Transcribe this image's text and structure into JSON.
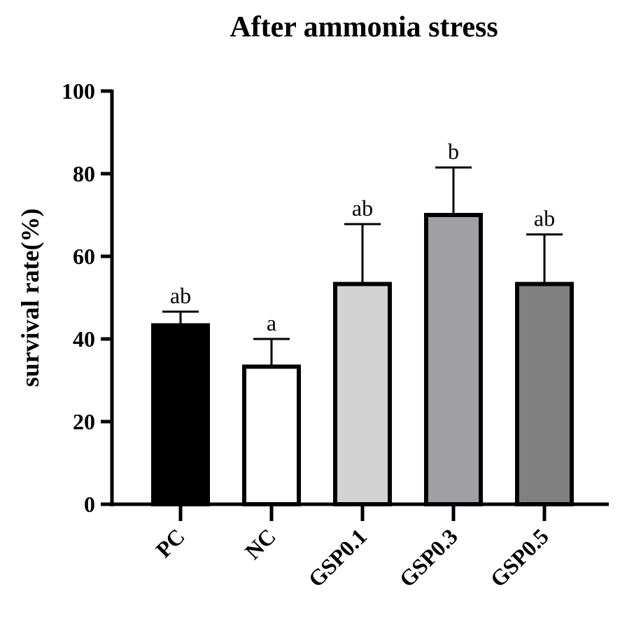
{
  "chart_data": {
    "type": "bar",
    "title": "After ammonia stress",
    "xlabel": "",
    "ylabel": "survival rate(%)",
    "ylim": [
      0,
      100
    ],
    "yticks": [
      0,
      20,
      40,
      60,
      80,
      100
    ],
    "grid": false,
    "categories": [
      "PC",
      "NC",
      "GSP0.1",
      "GSP0.3",
      "GSP0.5"
    ],
    "values": [
      43.3,
      33.3,
      53.3,
      70.0,
      53.3
    ],
    "errors": [
      3.3,
      6.7,
      14.5,
      11.5,
      12.0
    ],
    "significance": [
      "ab",
      "a",
      "ab",
      "b",
      "ab"
    ],
    "colors": [
      "#000000",
      "#ffffff",
      "#d3d3d3",
      "#a0a0a4",
      "#808080"
    ]
  }
}
